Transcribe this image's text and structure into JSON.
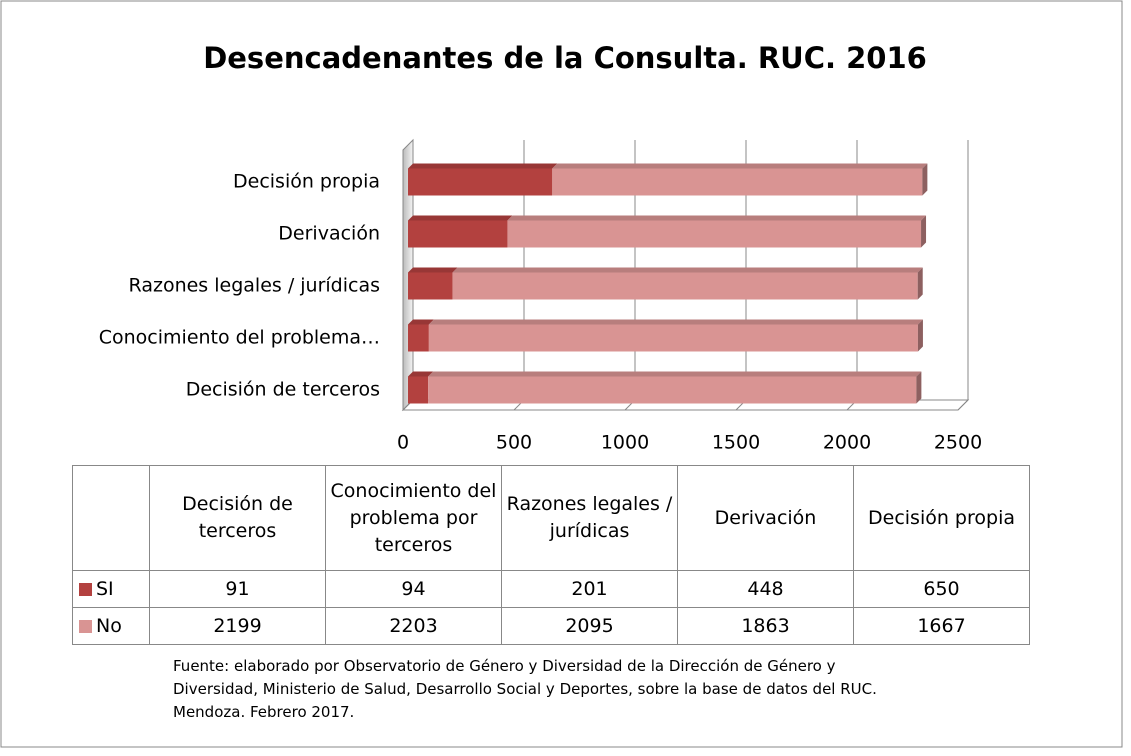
{
  "chart_data": {
    "type": "bar",
    "orientation": "horizontal",
    "stacked": true,
    "title": "Desencadenantes de la Consulta. RUC. 2016",
    "categories": [
      "Decisión de terceros",
      "Conocimiento del problema por terceros",
      "Razones legales / jurídicas",
      "Derivación",
      "Decisión propia"
    ],
    "axis_labels": [
      "Decisión de terceros",
      "Conocimiento del problema…",
      "Razones legales / jurídicas",
      "Derivación",
      "Decisión propia"
    ],
    "series": [
      {
        "name": "SI",
        "color": "#b3413f",
        "values": [
          91,
          94,
          201,
          448,
          650
        ]
      },
      {
        "name": "No",
        "color": "#d99493",
        "values": [
          2199,
          2203,
          2095,
          1863,
          1667
        ]
      }
    ],
    "xlim": [
      0,
      2500
    ],
    "xticks": [
      0,
      500,
      1000,
      1500,
      2000,
      2500
    ],
    "grid": true,
    "source": [
      "Fuente: elaborado por Observatorio de Género y Diversidad de la Dirección de Género y",
      "Diversidad, Ministerio de  Salud, Desarrollo Social y Deportes, sobre la base de datos del RUC.",
      "Mendoza. Febrero 2017."
    ]
  }
}
